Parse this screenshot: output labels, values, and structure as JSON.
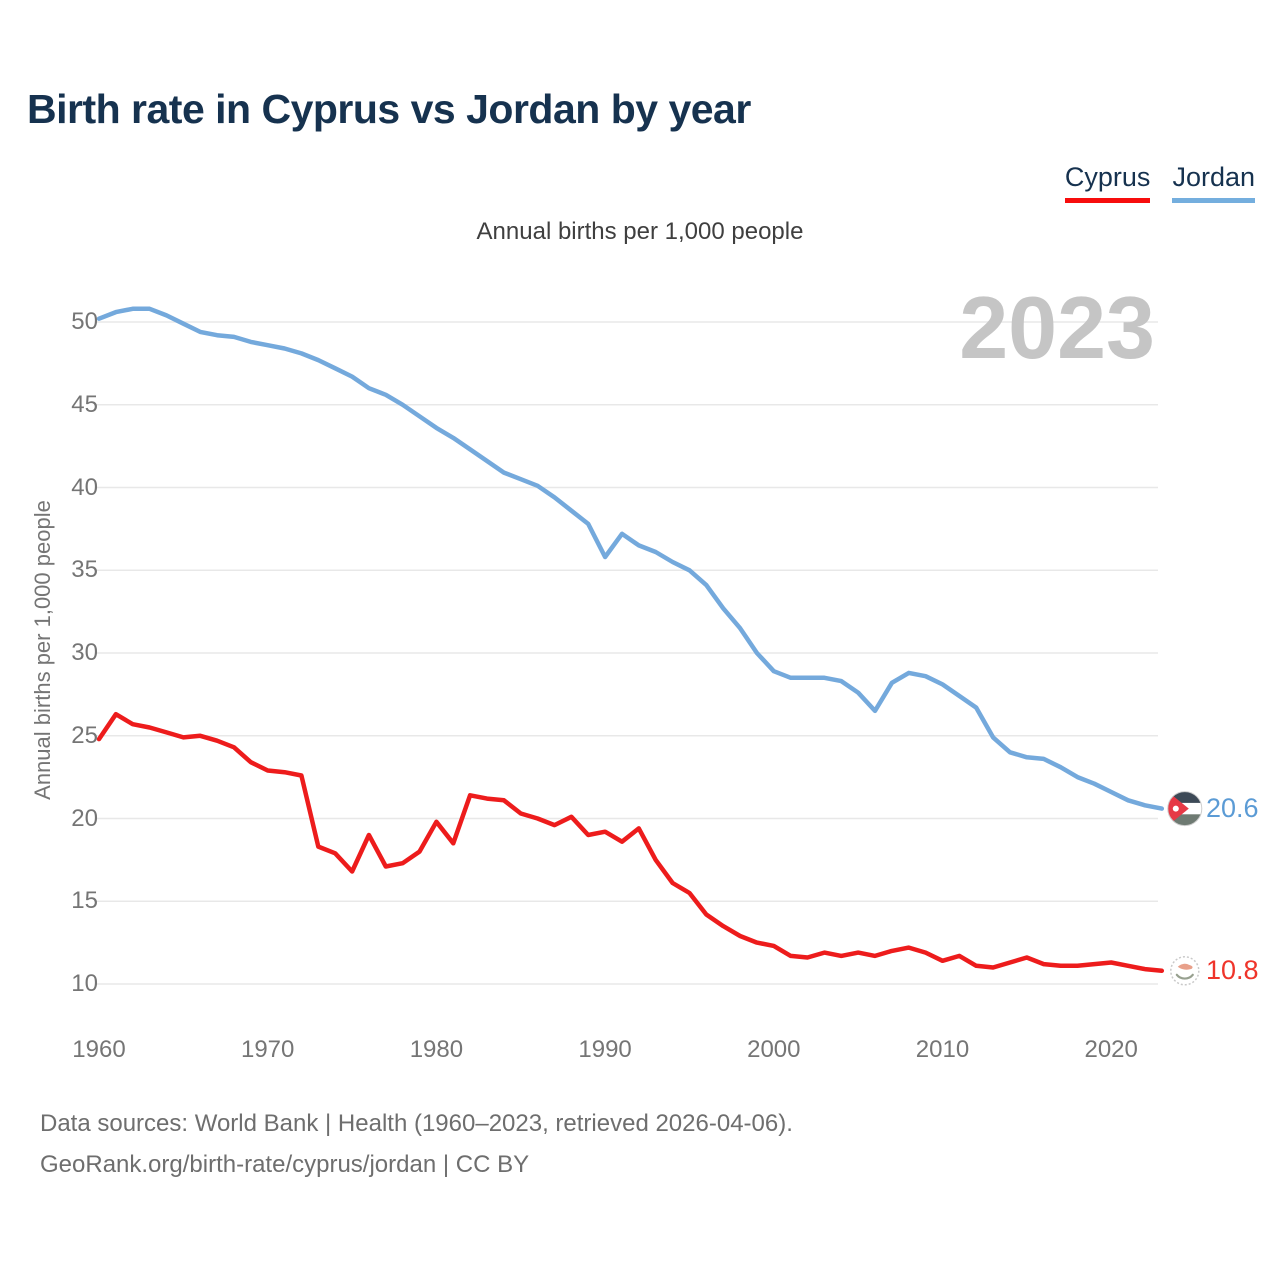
{
  "header": {
    "title": "Birth rate in Cyprus vs Jordan by year",
    "subtitle": "Annual births per 1,000 people"
  },
  "legend": {
    "cyprus_label": "Cyprus",
    "jordan_label": "Jordan",
    "cyprus_color": "#f70d0d",
    "jordan_color": "#74aede"
  },
  "watermark": "2023",
  "y_axis_title": "Annual births per 1,000 people",
  "footer": {
    "line1": "Data sources: World Bank | Health (1960–2023, retrieved 2026-04-06).",
    "line2": "GeoRank.org/birth-rate/cyprus/jordan | CC BY"
  },
  "chart_data": {
    "type": "line",
    "title": "Birth rate in Cyprus vs Jordan by year",
    "ylabel": "Annual births per 1,000 people",
    "xlabel": "",
    "grid": true,
    "legend_position": "top-right",
    "xlim": [
      1958,
      2027
    ],
    "ylim": [
      8,
      52
    ],
    "xticks": [
      1960,
      1970,
      1980,
      1990,
      2000,
      2010,
      2020
    ],
    "yticks": [
      10,
      15,
      20,
      25,
      30,
      35,
      40,
      45,
      50
    ],
    "x": [
      1960,
      1961,
      1962,
      1963,
      1964,
      1965,
      1966,
      1967,
      1968,
      1969,
      1970,
      1971,
      1972,
      1973,
      1974,
      1975,
      1976,
      1977,
      1978,
      1979,
      1980,
      1981,
      1982,
      1983,
      1984,
      1985,
      1986,
      1987,
      1988,
      1989,
      1990,
      1991,
      1992,
      1993,
      1994,
      1995,
      1996,
      1997,
      1998,
      1999,
      2000,
      2001,
      2002,
      2003,
      2004,
      2005,
      2006,
      2007,
      2008,
      2009,
      2010,
      2011,
      2012,
      2013,
      2014,
      2015,
      2016,
      2017,
      2018,
      2019,
      2020,
      2021,
      2022,
      2023
    ],
    "series": [
      {
        "name": "Jordan",
        "color": "#74a9dc",
        "label_color": "#5b9bd5",
        "end_value": "20.6",
        "flag": "jordan",
        "values": [
          50.2,
          50.6,
          50.8,
          50.8,
          50.4,
          49.9,
          49.4,
          49.2,
          49.1,
          48.8,
          48.6,
          48.4,
          48.1,
          47.7,
          47.2,
          46.7,
          46.0,
          45.6,
          45.0,
          44.3,
          43.6,
          43.0,
          42.3,
          41.6,
          40.9,
          40.5,
          40.1,
          39.4,
          38.6,
          37.8,
          35.8,
          37.2,
          36.5,
          36.1,
          35.5,
          35.0,
          34.1,
          32.7,
          31.5,
          30.0,
          28.9,
          28.5,
          28.5,
          28.5,
          28.3,
          27.6,
          26.5,
          28.2,
          28.8,
          28.6,
          28.1,
          27.4,
          26.7,
          24.9,
          24.0,
          23.7,
          23.6,
          23.1,
          22.5,
          22.1,
          21.6,
          21.1,
          20.8,
          20.6
        ]
      },
      {
        "name": "Cyprus",
        "color": "#ed1c1c",
        "label_color": "#ef342a",
        "end_value": "10.8",
        "flag": "cyprus",
        "values": [
          24.8,
          26.3,
          25.7,
          25.5,
          25.2,
          24.9,
          25.0,
          24.7,
          24.3,
          23.4,
          22.9,
          22.8,
          22.6,
          18.3,
          17.9,
          16.8,
          19.0,
          17.1,
          17.3,
          18.0,
          19.8,
          18.5,
          21.4,
          21.2,
          21.1,
          20.3,
          20.0,
          19.6,
          20.1,
          19.0,
          19.2,
          18.6,
          19.4,
          17.5,
          16.1,
          15.5,
          14.2,
          13.5,
          12.9,
          12.5,
          12.3,
          11.7,
          11.6,
          11.9,
          11.7,
          11.9,
          11.7,
          12.0,
          12.2,
          11.9,
          11.4,
          11.7,
          11.1,
          11.0,
          11.3,
          11.6,
          11.2,
          11.1,
          11.1,
          11.2,
          11.3,
          11.1,
          10.9,
          10.8
        ]
      }
    ]
  }
}
